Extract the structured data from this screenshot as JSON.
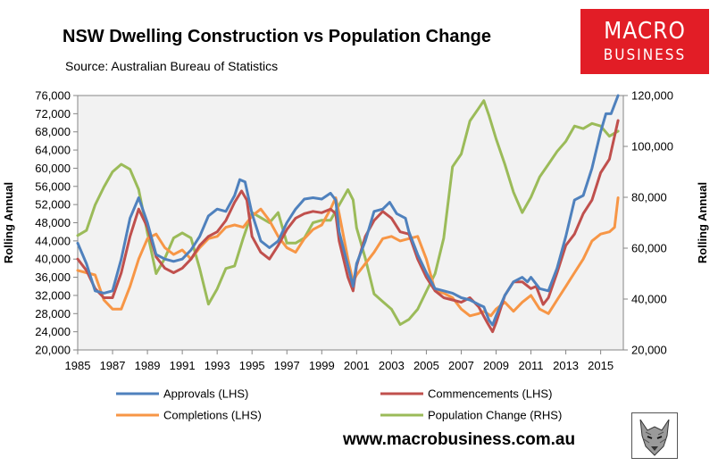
{
  "title": "NSW Dwelling Construction vs Population Change",
  "source": "Source: Australian Bureau of Statistics",
  "logo": {
    "line1": "MACRO",
    "line2": "BUSINESS"
  },
  "website": "www.macrobusiness.com.au",
  "icon": "wolf-head-logo",
  "chart_data": {
    "type": "line",
    "title": "NSW Dwelling Construction vs Population Change",
    "ylabel_left": "Rolling Annual",
    "ylabel_right": "Rolling Annual",
    "xlim": [
      1985,
      2016.3
    ],
    "ylim_left": [
      20000,
      76000
    ],
    "ylim_right": [
      20000,
      120000
    ],
    "x_ticks": [
      "1985",
      "1987",
      "1989",
      "1991",
      "1993",
      "1995",
      "1997",
      "1999",
      "2001",
      "2003",
      "2005",
      "2007",
      "2009",
      "2011",
      "2013",
      "2015"
    ],
    "y_left_ticks": [
      "20,000",
      "24,000",
      "28,000",
      "32,000",
      "36,000",
      "40,000",
      "44,000",
      "48,000",
      "52,000",
      "56,000",
      "60,000",
      "64,000",
      "68,000",
      "72,000",
      "76,000"
    ],
    "y_right_ticks": [
      "20,000",
      "40,000",
      "60,000",
      "80,000",
      "100,000",
      "120,000"
    ],
    "grid": false,
    "plot_background": "#f2f2f2",
    "legend_position": "bottom",
    "series": [
      {
        "name": "Approvals (LHS)",
        "axis": "left",
        "color": "#4f81bd",
        "points": [
          [
            1985,
            43500
          ],
          [
            1985.5,
            39000
          ],
          [
            1986,
            33000
          ],
          [
            1986.5,
            32500
          ],
          [
            1987,
            33000
          ],
          [
            1987.5,
            40000
          ],
          [
            1988,
            49000
          ],
          [
            1988.5,
            53500
          ],
          [
            1989,
            48000
          ],
          [
            1989.5,
            41000
          ],
          [
            1990,
            40000
          ],
          [
            1990.5,
            39500
          ],
          [
            1991,
            40000
          ],
          [
            1991.5,
            42000
          ],
          [
            1992,
            45000
          ],
          [
            1992.5,
            49500
          ],
          [
            1993,
            51000
          ],
          [
            1993.5,
            50500
          ],
          [
            1994,
            54000
          ],
          [
            1994.3,
            57500
          ],
          [
            1994.6,
            57000
          ],
          [
            1995,
            50000
          ],
          [
            1995.5,
            44000
          ],
          [
            1996,
            42500
          ],
          [
            1996.5,
            44000
          ],
          [
            1997,
            48000
          ],
          [
            1997.5,
            51000
          ],
          [
            1998,
            53200
          ],
          [
            1998.5,
            53500
          ],
          [
            1999,
            53200
          ],
          [
            1999.5,
            54500
          ],
          [
            1999.8,
            53000
          ],
          [
            2000,
            46000
          ],
          [
            2000.5,
            38500
          ],
          [
            2000.8,
            34000
          ],
          [
            2001,
            39000
          ],
          [
            2001.5,
            44000
          ],
          [
            2002,
            50500
          ],
          [
            2002.5,
            51000
          ],
          [
            2002.9,
            52500
          ],
          [
            2003.3,
            50000
          ],
          [
            2003.8,
            49000
          ],
          [
            2004,
            46000
          ],
          [
            2004.5,
            41000
          ],
          [
            2005,
            37000
          ],
          [
            2005.5,
            33500
          ],
          [
            2006,
            33000
          ],
          [
            2006.5,
            32500
          ],
          [
            2007,
            31500
          ],
          [
            2007.5,
            31000
          ],
          [
            2008,
            30000
          ],
          [
            2008.3,
            29500
          ],
          [
            2008.6,
            26500
          ],
          [
            2008.8,
            25500
          ],
          [
            2009,
            27500
          ],
          [
            2009.5,
            32000
          ],
          [
            2010,
            35000
          ],
          [
            2010.5,
            36000
          ],
          [
            2010.8,
            35000
          ],
          [
            2011,
            36000
          ],
          [
            2011.5,
            33500
          ],
          [
            2012,
            33000
          ],
          [
            2012.5,
            38000
          ],
          [
            2013,
            45000
          ],
          [
            2013.5,
            53000
          ],
          [
            2014,
            54000
          ],
          [
            2014.5,
            60000
          ],
          [
            2015,
            68000
          ],
          [
            2015.3,
            72000
          ],
          [
            2015.6,
            72000
          ],
          [
            2016,
            76000
          ]
        ]
      },
      {
        "name": "Commencements (LHS)",
        "axis": "left",
        "color": "#c0504d",
        "points": [
          [
            1985,
            40000
          ],
          [
            1985.5,
            37500
          ],
          [
            1986,
            33500
          ],
          [
            1986.5,
            31500
          ],
          [
            1987,
            31500
          ],
          [
            1987.5,
            37000
          ],
          [
            1988,
            45000
          ],
          [
            1988.5,
            51000
          ],
          [
            1989,
            47000
          ],
          [
            1989.5,
            40500
          ],
          [
            1990,
            38000
          ],
          [
            1990.5,
            37000
          ],
          [
            1991,
            38000
          ],
          [
            1991.5,
            40000
          ],
          [
            1992,
            43000
          ],
          [
            1992.5,
            45000
          ],
          [
            1993,
            46000
          ],
          [
            1993.5,
            48500
          ],
          [
            1994,
            52500
          ],
          [
            1994.4,
            55000
          ],
          [
            1994.7,
            53000
          ],
          [
            1995,
            45000
          ],
          [
            1995.5,
            41500
          ],
          [
            1996,
            40000
          ],
          [
            1996.5,
            43000
          ],
          [
            1997,
            46500
          ],
          [
            1997.5,
            49000
          ],
          [
            1998,
            50000
          ],
          [
            1998.5,
            50500
          ],
          [
            1999,
            50200
          ],
          [
            1999.5,
            51000
          ],
          [
            1999.8,
            50000
          ],
          [
            2000,
            44000
          ],
          [
            2000.5,
            36000
          ],
          [
            2000.8,
            33000
          ],
          [
            2001,
            38500
          ],
          [
            2001.5,
            45000
          ],
          [
            2002,
            48500
          ],
          [
            2002.5,
            50500
          ],
          [
            2003,
            49000
          ],
          [
            2003.5,
            46000
          ],
          [
            2004,
            45500
          ],
          [
            2004.5,
            40000
          ],
          [
            2005,
            36000
          ],
          [
            2005.5,
            33000
          ],
          [
            2006,
            31500
          ],
          [
            2006.5,
            31000
          ],
          [
            2007,
            30500
          ],
          [
            2007.5,
            31500
          ],
          [
            2008,
            29500
          ],
          [
            2008.5,
            26000
          ],
          [
            2008.8,
            24000
          ],
          [
            2009,
            26000
          ],
          [
            2009.5,
            32000
          ],
          [
            2010,
            35000
          ],
          [
            2010.5,
            35000
          ],
          [
            2011,
            33500
          ],
          [
            2011.3,
            34000
          ],
          [
            2011.7,
            30000
          ],
          [
            2012,
            31500
          ],
          [
            2012.5,
            37000
          ],
          [
            2013,
            43000
          ],
          [
            2013.5,
            45500
          ],
          [
            2014,
            50000
          ],
          [
            2014.5,
            53000
          ],
          [
            2015,
            59000
          ],
          [
            2015.5,
            62000
          ],
          [
            2016,
            70500
          ]
        ]
      },
      {
        "name": "Completions (LHS)",
        "axis": "left",
        "color": "#f79646",
        "points": [
          [
            1985,
            37500
          ],
          [
            1985.5,
            37000
          ],
          [
            1986,
            36500
          ],
          [
            1986.5,
            31000
          ],
          [
            1987,
            29000
          ],
          [
            1987.5,
            29000
          ],
          [
            1988,
            34000
          ],
          [
            1988.5,
            40000
          ],
          [
            1989,
            44500
          ],
          [
            1989.5,
            45500
          ],
          [
            1990,
            42500
          ],
          [
            1990.5,
            41000
          ],
          [
            1991,
            42000
          ],
          [
            1991.5,
            40000
          ],
          [
            1992,
            42500
          ],
          [
            1992.5,
            44500
          ],
          [
            1993,
            45000
          ],
          [
            1993.5,
            47000
          ],
          [
            1994,
            47500
          ],
          [
            1994.5,
            47000
          ],
          [
            1995,
            49500
          ],
          [
            1995.5,
            51000
          ],
          [
            1996,
            48500
          ],
          [
            1996.5,
            45000
          ],
          [
            1997,
            42500
          ],
          [
            1997.5,
            41500
          ],
          [
            1998,
            44500
          ],
          [
            1998.5,
            46500
          ],
          [
            1999,
            47500
          ],
          [
            1999.5,
            51000
          ],
          [
            1999.8,
            53500
          ],
          [
            2000,
            50000
          ],
          [
            2000.5,
            40000
          ],
          [
            2000.8,
            35000
          ],
          [
            2001,
            36500
          ],
          [
            2001.5,
            39000
          ],
          [
            2002,
            41500
          ],
          [
            2002.5,
            44500
          ],
          [
            2003,
            45000
          ],
          [
            2003.5,
            44000
          ],
          [
            2004,
            44500
          ],
          [
            2004.5,
            45000
          ],
          [
            2005,
            40000
          ],
          [
            2005.5,
            33000
          ],
          [
            2006,
            32500
          ],
          [
            2006.5,
            31500
          ],
          [
            2007,
            29000
          ],
          [
            2007.5,
            27500
          ],
          [
            2008,
            28000
          ],
          [
            2008.3,
            28500
          ],
          [
            2008.7,
            27500
          ],
          [
            2009,
            29000
          ],
          [
            2009.5,
            30500
          ],
          [
            2010,
            28500
          ],
          [
            2010.5,
            30500
          ],
          [
            2011,
            32000
          ],
          [
            2011.5,
            29000
          ],
          [
            2012,
            28000
          ],
          [
            2012.5,
            31000
          ],
          [
            2013,
            34000
          ],
          [
            2013.5,
            37000
          ],
          [
            2014,
            40000
          ],
          [
            2014.5,
            44000
          ],
          [
            2015,
            45500
          ],
          [
            2015.5,
            46000
          ],
          [
            2015.8,
            47000
          ],
          [
            2016,
            53500
          ]
        ]
      },
      {
        "name": "Population Change (RHS)",
        "axis": "right",
        "color": "#9bbb59",
        "points": [
          [
            1985,
            65000
          ],
          [
            1985.5,
            67000
          ],
          [
            1986,
            77000
          ],
          [
            1986.5,
            84000
          ],
          [
            1987,
            90000
          ],
          [
            1987.5,
            93000
          ],
          [
            1988,
            91000
          ],
          [
            1988.5,
            83000
          ],
          [
            1989,
            66000
          ],
          [
            1989.5,
            50000
          ],
          [
            1990,
            56000
          ],
          [
            1990.5,
            64000
          ],
          [
            1991,
            66000
          ],
          [
            1991.5,
            64000
          ],
          [
            1992,
            52000
          ],
          [
            1992.5,
            38000
          ],
          [
            1993,
            44000
          ],
          [
            1993.5,
            52000
          ],
          [
            1994,
            53000
          ],
          [
            1994.5,
            64000
          ],
          [
            1995,
            74000
          ],
          [
            1995.5,
            72000
          ],
          [
            1996,
            70000
          ],
          [
            1996.5,
            74000
          ],
          [
            1997,
            62000
          ],
          [
            1997.5,
            62000
          ],
          [
            1998,
            64000
          ],
          [
            1998.5,
            70000
          ],
          [
            1999,
            71000
          ],
          [
            1999.5,
            71000
          ],
          [
            2000,
            77000
          ],
          [
            2000.5,
            83000
          ],
          [
            2000.8,
            79000
          ],
          [
            2001,
            68000
          ],
          [
            2001.5,
            56000
          ],
          [
            2002,
            42000
          ],
          [
            2002.5,
            39000
          ],
          [
            2003,
            36000
          ],
          [
            2003.5,
            30000
          ],
          [
            2004,
            32000
          ],
          [
            2004.5,
            36000
          ],
          [
            2005,
            43000
          ],
          [
            2005.5,
            50000
          ],
          [
            2006,
            64000
          ],
          [
            2006.5,
            92000
          ],
          [
            2007,
            97000
          ],
          [
            2007.5,
            110000
          ],
          [
            2008,
            115000
          ],
          [
            2008.3,
            118000
          ],
          [
            2008.6,
            112000
          ],
          [
            2009,
            103000
          ],
          [
            2009.5,
            93000
          ],
          [
            2010,
            82000
          ],
          [
            2010.5,
            74000
          ],
          [
            2011,
            80000
          ],
          [
            2011.5,
            88000
          ],
          [
            2012,
            93000
          ],
          [
            2012.5,
            98000
          ],
          [
            2013,
            102000
          ],
          [
            2013.5,
            108000
          ],
          [
            2014,
            107000
          ],
          [
            2014.5,
            109000
          ],
          [
            2015,
            108000
          ],
          [
            2015.5,
            104000
          ],
          [
            2016,
            106000
          ]
        ]
      }
    ]
  }
}
